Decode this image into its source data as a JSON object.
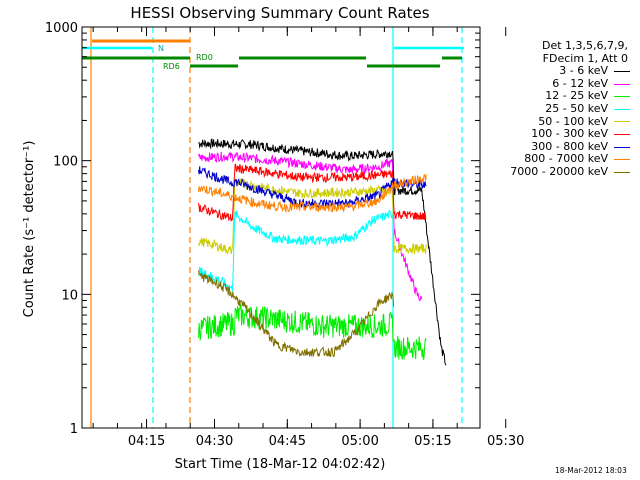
{
  "chart_data": {
    "type": "line",
    "title": "HESSI Observing Summary Count Rates",
    "xlabel": "Start Time (18-Mar-12 04:02:42)",
    "ylabel": "Count Rate (s⁻¹ detector⁻¹)",
    "yscale": "log",
    "ylim": [
      1,
      1000
    ],
    "xlim_min": [
      0,
      82
    ],
    "x_ticks_min": [
      13.3,
      27.3,
      42.3,
      57.3,
      72.3,
      87.3
    ],
    "x_tick_labels": [
      "04:15",
      "04:30",
      "04:45",
      "05:00",
      "05:15",
      "05:30"
    ],
    "y_ticks": [
      1,
      10,
      100,
      1000
    ],
    "y_tick_labels": [
      "1",
      "10",
      "100",
      "1000"
    ],
    "legend": {
      "header": [
        "Det 1,3,5,6,7,9,",
        "FDecim 1, Att 0"
      ],
      "entries": [
        {
          "label": "3 - 6 keV",
          "color": "#000000"
        },
        {
          "label": "6 - 12 keV",
          "color": "#ff00ff"
        },
        {
          "label": "12 - 25 keV",
          "color": "#00ee00"
        },
        {
          "label": "25 - 50 keV",
          "color": "#00ffff"
        },
        {
          "label": "50 - 100 keV",
          "color": "#cccc00"
        },
        {
          "label": "100 - 300 keV",
          "color": "#ff0000"
        },
        {
          "label": "300 - 800 keV",
          "color": "#0000cc"
        },
        {
          "label": "800 - 7000 keV",
          "color": "#ff8000"
        },
        {
          "label": "7000 - 20000 keV",
          "color": "#807000"
        }
      ]
    },
    "series": [
      {
        "label": "3 - 6 keV",
        "color": "#000000",
        "points": [
          [
            24,
            135
          ],
          [
            35,
            132
          ],
          [
            45,
            118
          ],
          [
            55,
            108
          ],
          [
            61,
            112
          ],
          [
            64,
            115
          ],
          [
            64.3,
            60
          ],
          [
            70,
            60
          ],
          [
            74,
            4
          ],
          [
            75,
            3
          ]
        ]
      },
      {
        "label": "6 - 12 keV",
        "color": "#ff00ff",
        "points": [
          [
            24,
            105
          ],
          [
            30,
            108
          ],
          [
            40,
            100
          ],
          [
            48,
            92
          ],
          [
            55,
            85
          ],
          [
            61,
            90
          ],
          [
            63,
            95
          ],
          [
            64,
            96
          ],
          [
            64.3,
            30
          ],
          [
            66,
            20
          ],
          [
            69,
            10
          ],
          [
            70,
            9
          ]
        ]
      },
      {
        "label": "12 - 25 keV",
        "color": "#00ee00",
        "points": [
          [
            24,
            5.5
          ],
          [
            30,
            6
          ],
          [
            31.5,
            6
          ],
          [
            31.5,
            7
          ],
          [
            40,
            6.5
          ],
          [
            50,
            5.8
          ],
          [
            61,
            5.8
          ],
          [
            64,
            6
          ],
          [
            64.3,
            4
          ],
          [
            71,
            4
          ]
        ]
      },
      {
        "label": "25 - 50 keV",
        "color": "#00ffff",
        "points": [
          [
            24,
            15
          ],
          [
            28,
            13
          ],
          [
            31,
            11
          ],
          [
            31.5,
            40
          ],
          [
            35,
            32
          ],
          [
            40,
            26
          ],
          [
            50,
            25
          ],
          [
            56,
            27
          ],
          [
            60,
            36
          ],
          [
            64,
            40
          ],
          [
            64.3,
            35
          ]
        ]
      },
      {
        "label": "50 - 100 keV",
        "color": "#cccc00",
        "points": [
          [
            24,
            25
          ],
          [
            28,
            23
          ],
          [
            31,
            21
          ],
          [
            31.5,
            70
          ],
          [
            38,
            62
          ],
          [
            45,
            57
          ],
          [
            55,
            58
          ],
          [
            61,
            60
          ],
          [
            64,
            58
          ],
          [
            64.3,
            22
          ],
          [
            71,
            22
          ]
        ]
      },
      {
        "label": "100 - 300 keV",
        "color": "#ff0000",
        "points": [
          [
            24,
            45
          ],
          [
            28,
            40
          ],
          [
            31,
            37
          ],
          [
            31.5,
            88
          ],
          [
            38,
            82
          ],
          [
            45,
            75
          ],
          [
            55,
            75
          ],
          [
            61,
            78
          ],
          [
            64,
            80
          ],
          [
            64.3,
            40
          ],
          [
            71,
            38
          ]
        ]
      },
      {
        "label": "300 - 800 keV",
        "color": "#0000cc",
        "points": [
          [
            24,
            85
          ],
          [
            28,
            75
          ],
          [
            31,
            68
          ],
          [
            31.5,
            70
          ],
          [
            38,
            58
          ],
          [
            45,
            48
          ],
          [
            55,
            48
          ],
          [
            61,
            55
          ],
          [
            64,
            70
          ],
          [
            66,
            68
          ],
          [
            71,
            65
          ]
        ]
      },
      {
        "label": "800 - 7000 keV",
        "color": "#ff8000",
        "points": [
          [
            24,
            63
          ],
          [
            28,
            58
          ],
          [
            31,
            54
          ],
          [
            36,
            48
          ],
          [
            41,
            45
          ],
          [
            48,
            45
          ],
          [
            55,
            45
          ],
          [
            61,
            50
          ],
          [
            64,
            65
          ],
          [
            71,
            75
          ]
        ]
      },
      {
        "label": "7000 - 20000 keV",
        "color": "#807000",
        "points": [
          [
            24,
            14
          ],
          [
            28,
            12
          ],
          [
            31,
            10
          ],
          [
            35,
            7
          ],
          [
            40,
            4.2
          ],
          [
            45,
            3.7
          ],
          [
            52,
            3.7
          ],
          [
            57,
            5.5
          ],
          [
            61,
            8.5
          ],
          [
            64,
            10
          ],
          [
            64.3,
            8
          ]
        ]
      }
    ],
    "annotations": {
      "attenuator_level_N": "N",
      "rd0_label": "RD0",
      "rd6_label": "RD6"
    }
  },
  "footer_timestamp": "18-Mar-2012 18:03"
}
